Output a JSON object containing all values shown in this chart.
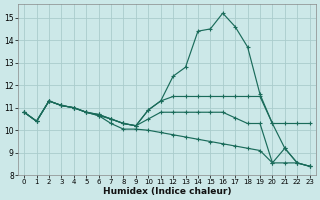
{
  "xlabel": "Humidex (Indice chaleur)",
  "bg_color": "#cce8e8",
  "grid_color": "#aacccc",
  "line_color": "#1a6b5a",
  "xlim": [
    -0.5,
    23.5
  ],
  "ylim": [
    8,
    15.6
  ],
  "yticks": [
    8,
    9,
    10,
    11,
    12,
    13,
    14,
    15
  ],
  "xticks": [
    0,
    1,
    2,
    3,
    4,
    5,
    6,
    7,
    8,
    9,
    10,
    11,
    12,
    13,
    14,
    15,
    16,
    17,
    18,
    19,
    20,
    21,
    22,
    23
  ],
  "series": [
    {
      "x": [
        0,
        1,
        2,
        3,
        4,
        5,
        6,
        7,
        8,
        9,
        10,
        11,
        12,
        13,
        14,
        15,
        16,
        17,
        18,
        19,
        20,
        21,
        22,
        23
      ],
      "y": [
        10.8,
        10.4,
        11.3,
        11.1,
        11.0,
        10.8,
        10.7,
        10.5,
        10.3,
        10.2,
        10.9,
        11.3,
        12.4,
        12.8,
        14.4,
        14.5,
        15.2,
        14.6,
        13.7,
        11.6,
        10.3,
        10.3,
        10.3,
        10.3
      ]
    },
    {
      "x": [
        0,
        1,
        2,
        3,
        4,
        5,
        6,
        7,
        8,
        9,
        10,
        11,
        12,
        13,
        14,
        15,
        16,
        17,
        18,
        19,
        20,
        21,
        22,
        23
      ],
      "y": [
        10.8,
        10.4,
        11.3,
        11.1,
        11.0,
        10.8,
        10.7,
        10.5,
        10.3,
        10.2,
        10.9,
        11.3,
        11.5,
        11.5,
        11.5,
        11.5,
        11.5,
        11.5,
        11.5,
        11.5,
        10.3,
        9.2,
        8.55,
        8.4
      ]
    },
    {
      "x": [
        0,
        1,
        2,
        3,
        4,
        5,
        6,
        7,
        8,
        9,
        10,
        11,
        12,
        13,
        14,
        15,
        16,
        17,
        18,
        19,
        20,
        21,
        22,
        23
      ],
      "y": [
        10.8,
        10.4,
        11.3,
        11.1,
        11.0,
        10.8,
        10.65,
        10.5,
        10.3,
        10.2,
        10.5,
        10.8,
        10.8,
        10.8,
        10.8,
        10.8,
        10.8,
        10.55,
        10.3,
        10.3,
        8.55,
        9.2,
        8.55,
        8.4
      ]
    },
    {
      "x": [
        0,
        1,
        2,
        3,
        4,
        5,
        6,
        7,
        8,
        9,
        10,
        11,
        12,
        13,
        14,
        15,
        16,
        17,
        18,
        19,
        20,
        21,
        22,
        23
      ],
      "y": [
        10.8,
        10.4,
        11.3,
        11.1,
        11.0,
        10.8,
        10.65,
        10.3,
        10.05,
        10.05,
        10.0,
        9.9,
        9.8,
        9.7,
        9.6,
        9.5,
        9.4,
        9.3,
        9.2,
        9.1,
        8.55,
        8.55,
        8.55,
        8.4
      ]
    }
  ]
}
